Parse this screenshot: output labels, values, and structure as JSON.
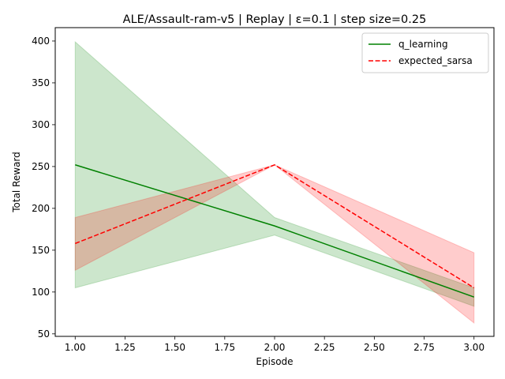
{
  "chart_data": {
    "type": "line",
    "title": "ALE/Assault-ram-v5 | Replay | ε=0.1 | step size=0.25",
    "xlabel": "Episode",
    "ylabel": "Total Reward",
    "xlim": [
      0.9,
      3.1
    ],
    "ylim": [
      47,
      416
    ],
    "x_ticks": [
      1.0,
      1.25,
      1.5,
      1.75,
      2.0,
      2.25,
      2.5,
      2.75,
      3.0
    ],
    "x_tick_labels": [
      "1.00",
      "1.25",
      "1.50",
      "1.75",
      "2.00",
      "2.25",
      "2.50",
      "2.75",
      "3.00"
    ],
    "y_ticks": [
      50,
      100,
      150,
      200,
      250,
      300,
      350,
      400
    ],
    "y_tick_labels": [
      "50",
      "100",
      "150",
      "200",
      "250",
      "300",
      "350",
      "400"
    ],
    "grid": false,
    "legend_position": "upper right",
    "x": [
      1,
      2,
      3
    ],
    "series": [
      {
        "name": "q_learning",
        "color": "#008000",
        "line_style": "solid",
        "values": [
          252,
          179,
          94
        ],
        "lower": [
          105,
          168,
          83
        ],
        "upper": [
          399,
          189,
          105
        ]
      },
      {
        "name": "expected_sarsa",
        "color": "#ff0000",
        "line_style": "dashed",
        "values": [
          158,
          252,
          105
        ],
        "lower": [
          126,
          252,
          63
        ],
        "upper": [
          189,
          252,
          147
        ]
      }
    ]
  }
}
